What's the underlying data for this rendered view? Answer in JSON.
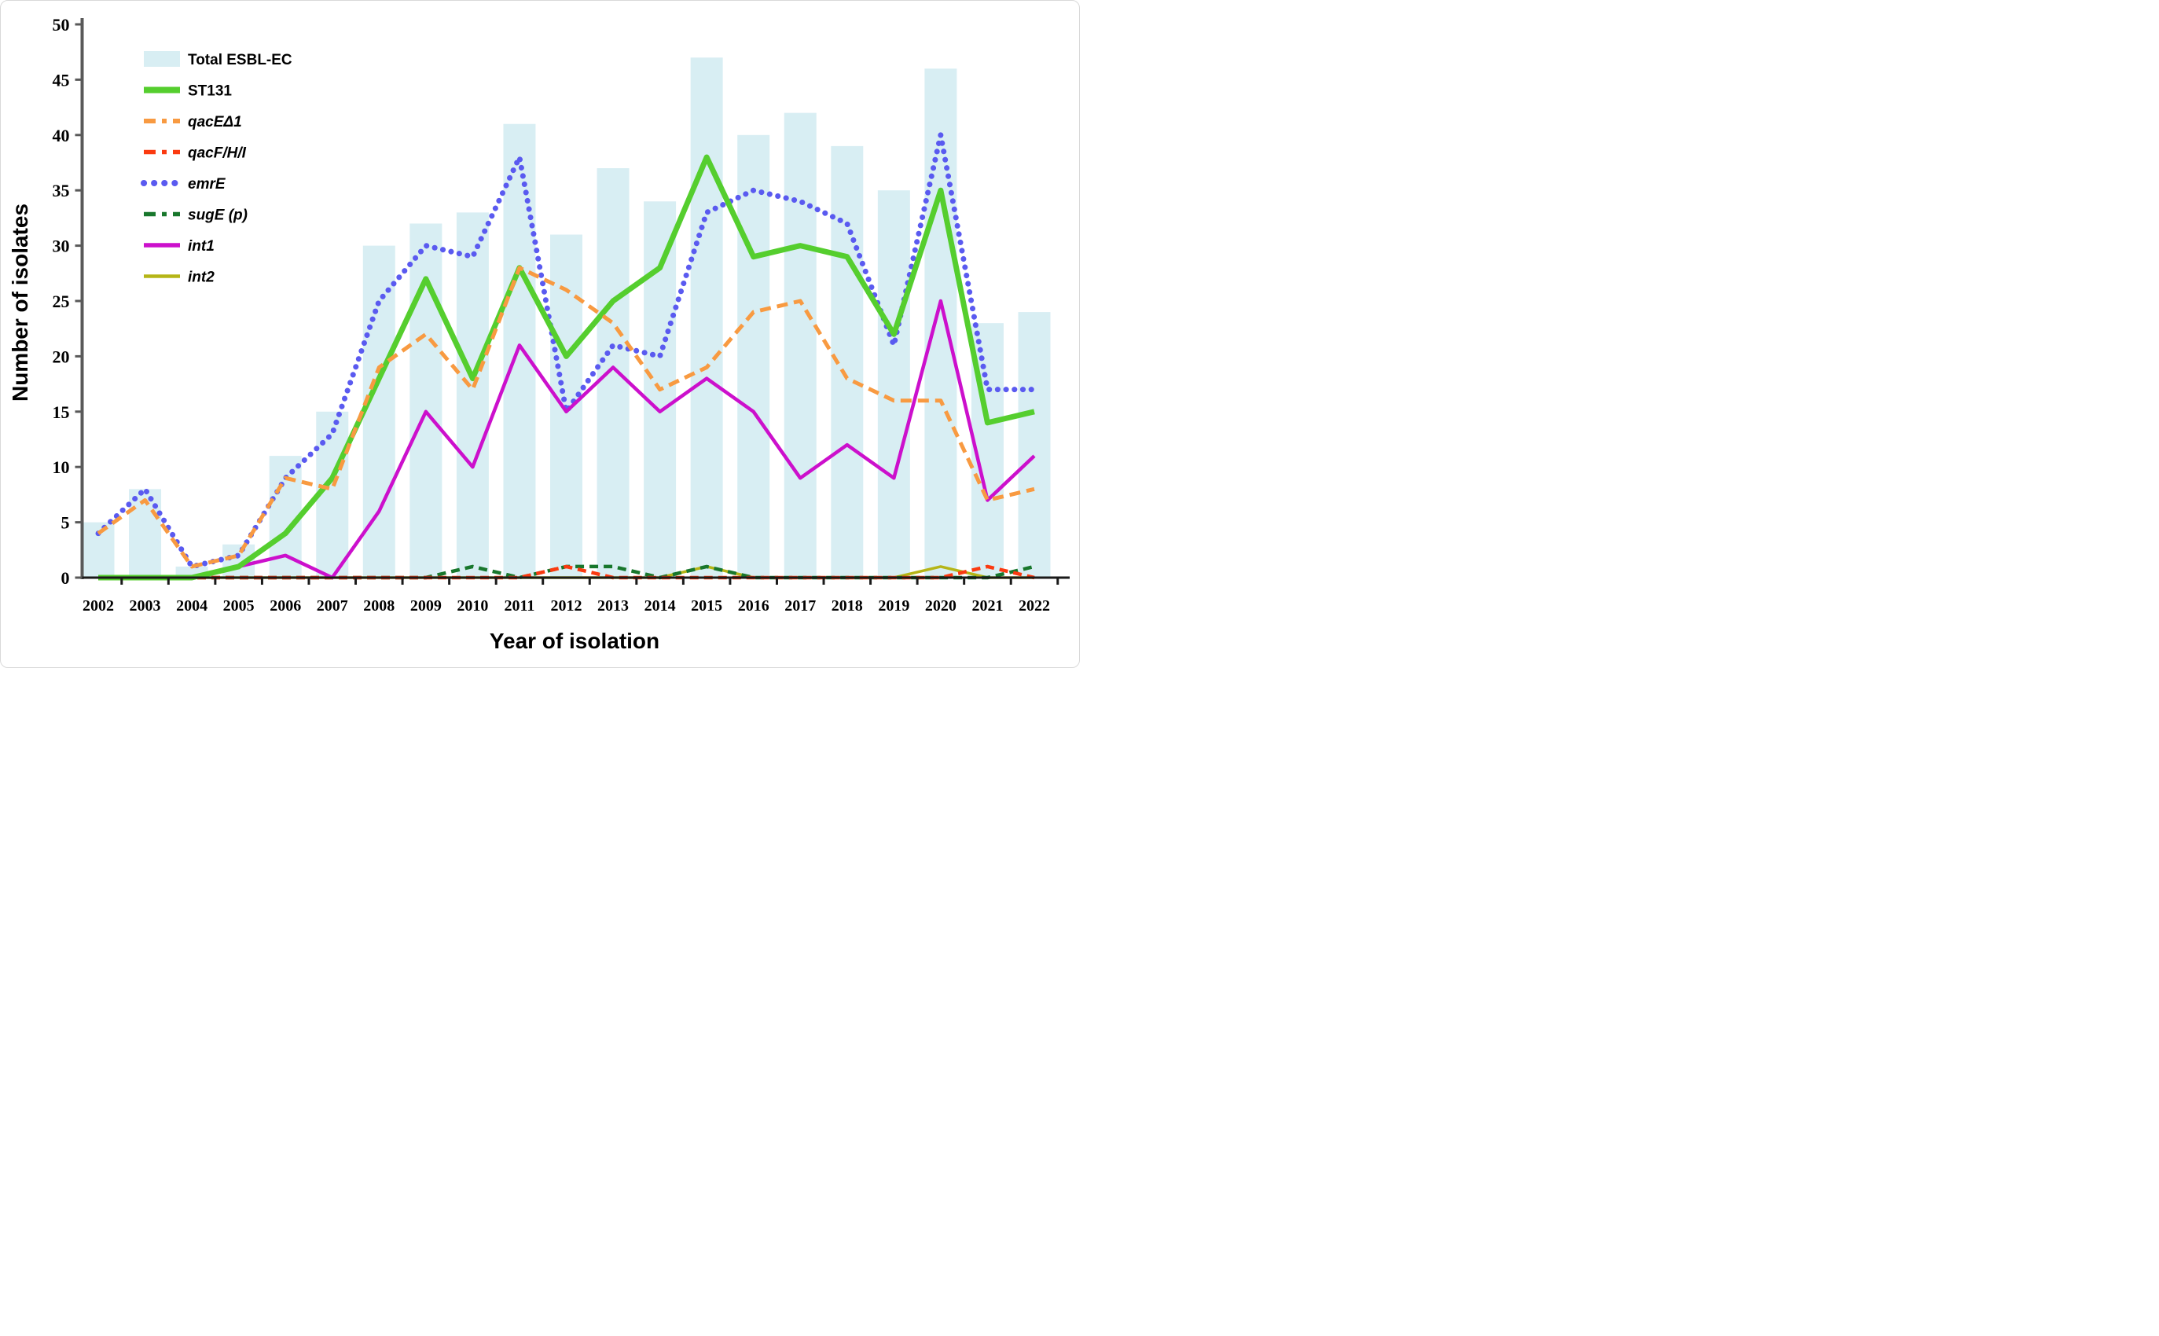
{
  "chart_data": {
    "type": "bar",
    "subtype": "combo-bar-line",
    "title": "",
    "x_label": "Year of isolation",
    "y_label": "Number of isolates",
    "categories": [
      2002,
      2003,
      2004,
      2005,
      2006,
      2007,
      2008,
      2009,
      2010,
      2011,
      2012,
      2013,
      2014,
      2015,
      2016,
      2017,
      2018,
      2019,
      2020,
      2021,
      2022
    ],
    "ylim": [
      0,
      50
    ],
    "y_ticks": [
      0,
      5,
      10,
      15,
      20,
      25,
      30,
      35,
      40,
      45,
      50
    ],
    "grid": false,
    "legend_position": "top-left",
    "bar_series": {
      "name": "Total ESBL-EC",
      "color": "#d8eef3",
      "italic": false,
      "values": [
        5,
        8,
        1,
        3,
        11,
        15,
        30,
        32,
        33,
        41,
        31,
        37,
        34,
        47,
        40,
        42,
        39,
        35,
        46,
        23,
        24
      ]
    },
    "line_series": [
      {
        "name": "ST131",
        "color": "#55ce2e",
        "style": "solid",
        "width": 7,
        "italic": false,
        "values": [
          0,
          0,
          0,
          1,
          4,
          9,
          18,
          27,
          18,
          28,
          20,
          25,
          28,
          38,
          29,
          30,
          29,
          22,
          35,
          14,
          15
        ]
      },
      {
        "name": "qacEΔ1",
        "color": "#f89a41",
        "style": "dashed",
        "width": 5,
        "italic": true,
        "values": [
          4,
          7,
          1,
          2,
          9,
          8,
          19,
          22,
          17,
          28,
          26,
          23,
          17,
          19,
          24,
          25,
          18,
          16,
          16,
          7,
          8
        ]
      },
      {
        "name": "qacF/H/I",
        "color": "#fb3a10",
        "style": "dashed",
        "width": 4.5,
        "italic": true,
        "values": [
          0,
          0,
          0,
          0,
          0,
          0,
          0,
          0,
          0,
          0,
          1,
          0,
          0,
          0,
          0,
          0,
          0,
          0,
          0,
          1,
          0
        ]
      },
      {
        "name": "emrE",
        "color": "#5a5af0",
        "style": "dotted",
        "width": 7,
        "italic": true,
        "values": [
          4,
          8,
          1,
          2,
          9,
          13,
          25,
          30,
          29,
          38,
          15,
          21,
          20,
          33,
          35,
          34,
          32,
          21,
          40,
          17,
          17
        ]
      },
      {
        "name": "sugE (p)",
        "color": "#18772c",
        "style": "dashed",
        "width": 4.5,
        "italic": true,
        "values": [
          0,
          0,
          0,
          0,
          0,
          0,
          0,
          0,
          1,
          0,
          1,
          1,
          0,
          1,
          0,
          0,
          0,
          0,
          0,
          0,
          1
        ]
      },
      {
        "name": "int1",
        "color": "#cc10cc",
        "style": "solid",
        "width": 4.5,
        "italic": true,
        "values": [
          0,
          0,
          0,
          1,
          2,
          0,
          6,
          15,
          10,
          21,
          15,
          19,
          15,
          18,
          15,
          9,
          12,
          9,
          25,
          7,
          11
        ]
      },
      {
        "name": "int2",
        "color": "#b5b517",
        "style": "solid",
        "width": 3.5,
        "italic": true,
        "values": [
          0,
          0,
          0,
          0,
          0,
          0,
          0,
          0,
          0,
          0,
          0,
          0,
          0,
          1,
          0,
          0,
          0,
          0,
          1,
          0,
          0
        ]
      }
    ]
  }
}
